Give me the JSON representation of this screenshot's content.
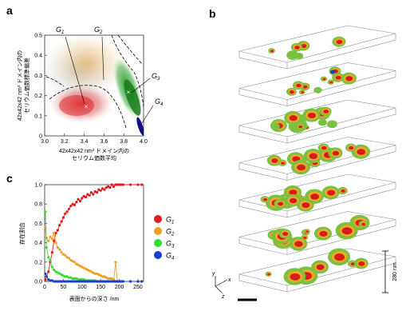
{
  "figure": {
    "panel_letters": [
      "a",
      "b",
      "c"
    ],
    "panel_a": {
      "xlabel_line1": "42x42x42 nm³ ドメイン内の",
      "xlabel_line2": "セリウム価数平均",
      "ylabel_line1": "42x42x42 nm³ ドメイン内の",
      "ylabel_line2": "セリウム価数標準偏差",
      "x_ticks": [
        "3.0",
        "3.2",
        "3.4",
        "3.6",
        "3.8",
        "4.0"
      ],
      "y_ticks": [
        "0",
        "0.1",
        "0.2",
        "0.3",
        "0.4",
        "0.5"
      ],
      "group_labels": [
        "G1",
        "G2",
        "G3",
        "G4"
      ],
      "group_colors": [
        "#c8191e",
        "#e6a020",
        "#1f9e2a",
        "#101080"
      ]
    },
    "panel_b": {
      "scale_label": "280 nm",
      "axis_labels": [
        "y",
        "x",
        "z"
      ],
      "colors": [
        "#d41e1e",
        "#7ac142",
        "#f5a623",
        "#1a3fb5"
      ]
    },
    "panel_c": {
      "legend": [
        {
          "name": "G",
          "sub": "1",
          "color": "#e41a1c"
        },
        {
          "name": "G",
          "sub": "2",
          "color": "#f0a020"
        },
        {
          "name": "G",
          "sub": "3",
          "color": "#33dd33"
        },
        {
          "name": "G",
          "sub": "4",
          "color": "#1a3fd0"
        }
      ]
    }
  },
  "chart_data": {
    "type": "scatter",
    "xlabel": "表面からの深さ /nm",
    "ylabel": "存在割合",
    "x_ticks": [
      "0",
      "50",
      "100",
      "150",
      "200",
      "250"
    ],
    "y_ticks": [
      "0.0",
      "0.2",
      "0.4",
      "0.6",
      "0.8",
      "1.0"
    ],
    "xlim": [
      0,
      265
    ],
    "ylim": [
      0,
      1.0
    ],
    "series": [
      {
        "name": "G1",
        "color": "#e41a1c",
        "x": [
          2,
          5,
          10,
          15,
          20,
          25,
          30,
          35,
          40,
          45,
          50,
          55,
          60,
          65,
          70,
          75,
          80,
          85,
          90,
          95,
          100,
          105,
          110,
          115,
          120,
          125,
          130,
          135,
          140,
          145,
          150,
          155,
          160,
          165,
          170,
          175,
          180,
          185,
          190,
          195,
          200,
          205,
          210,
          230,
          250,
          260
        ],
        "y": [
          0.02,
          0.05,
          0.1,
          0.2,
          0.3,
          0.42,
          0.5,
          0.53,
          0.58,
          0.62,
          0.66,
          0.7,
          0.72,
          0.75,
          0.78,
          0.8,
          0.79,
          0.82,
          0.85,
          0.83,
          0.86,
          0.88,
          0.87,
          0.9,
          0.89,
          0.92,
          0.9,
          0.93,
          0.92,
          0.95,
          0.94,
          0.96,
          0.95,
          0.97,
          0.98,
          0.97,
          1.0,
          0.98,
          1.0,
          1.0,
          1.0,
          1.0,
          1.0,
          1.0,
          1.0,
          1.0
        ]
      },
      {
        "name": "G2",
        "color": "#f0a020",
        "x": [
          2,
          5,
          10,
          15,
          20,
          25,
          30,
          35,
          40,
          45,
          50,
          55,
          60,
          65,
          70,
          75,
          80,
          85,
          90,
          95,
          100,
          105,
          110,
          115,
          120,
          125,
          130,
          135,
          140,
          145,
          150,
          155,
          160,
          165,
          170,
          175,
          180,
          185,
          190,
          195,
          200,
          205,
          210,
          230,
          250,
          260
        ],
        "y": [
          0.55,
          0.45,
          0.42,
          0.46,
          0.44,
          0.5,
          0.4,
          0.35,
          0.33,
          0.3,
          0.28,
          0.27,
          0.25,
          0.24,
          0.22,
          0.21,
          0.2,
          0.18,
          0.17,
          0.16,
          0.15,
          0.14,
          0.13,
          0.12,
          0.11,
          0.1,
          0.09,
          0.08,
          0.08,
          0.07,
          0.06,
          0.05,
          0.05,
          0.04,
          0.03,
          0.03,
          0.03,
          0.02,
          0.2,
          0.0,
          0.0,
          0.0,
          0.0,
          0.0,
          0.0,
          0.0
        ]
      },
      {
        "name": "G3",
        "color": "#33dd33",
        "x": [
          2,
          5,
          10,
          15,
          20,
          25,
          30,
          35,
          40,
          45,
          50,
          55,
          60,
          65,
          70,
          75,
          80,
          85,
          90,
          95,
          100,
          105,
          110,
          115,
          120,
          125,
          130,
          135,
          140,
          145,
          150,
          155,
          160,
          165,
          170,
          175,
          180,
          185,
          190,
          195,
          200,
          205,
          210,
          230,
          250,
          260
        ],
        "y": [
          0.72,
          0.35,
          0.25,
          0.22,
          0.15,
          0.12,
          0.1,
          0.09,
          0.08,
          0.07,
          0.06,
          0.05,
          0.05,
          0.04,
          0.04,
          0.03,
          0.03,
          0.03,
          0.02,
          0.02,
          0.02,
          0.02,
          0.01,
          0.01,
          0.01,
          0.01,
          0.01,
          0.01,
          0.0,
          0.0,
          0.0,
          0.0,
          0.0,
          0.0,
          0.0,
          0.0,
          0.0,
          0.0,
          0.0,
          0.0,
          0.0,
          0.0,
          0.0,
          0.0,
          0.0,
          0.0
        ]
      },
      {
        "name": "G4",
        "color": "#1a3fd0",
        "x": [
          2,
          5,
          10,
          15,
          20,
          25,
          30,
          35,
          40,
          45,
          50,
          55,
          60,
          65,
          70,
          75,
          80,
          85,
          90,
          95,
          100,
          105,
          110,
          115,
          120,
          125,
          130,
          135,
          140,
          145,
          150,
          155,
          160,
          165,
          170,
          175,
          180,
          185,
          190,
          195,
          200,
          205,
          210,
          230,
          250,
          260
        ],
        "y": [
          0.08,
          0.05,
          0.02,
          0.01,
          0.01,
          0.0,
          0.0,
          0.0,
          0.0,
          0.0,
          0.0,
          0.0,
          0.0,
          0.0,
          0.0,
          0.0,
          0.0,
          0.0,
          0.0,
          0.0,
          0.0,
          0.0,
          0.0,
          0.0,
          0.0,
          0.0,
          0.0,
          0.0,
          0.0,
          0.0,
          0.0,
          0.0,
          0.0,
          0.0,
          0.0,
          0.0,
          0.0,
          0.0,
          0.0,
          0.0,
          0.0,
          0.0,
          0.0,
          0.0,
          0.0,
          0.0
        ]
      }
    ],
    "grid": false,
    "legend_position": "right"
  }
}
